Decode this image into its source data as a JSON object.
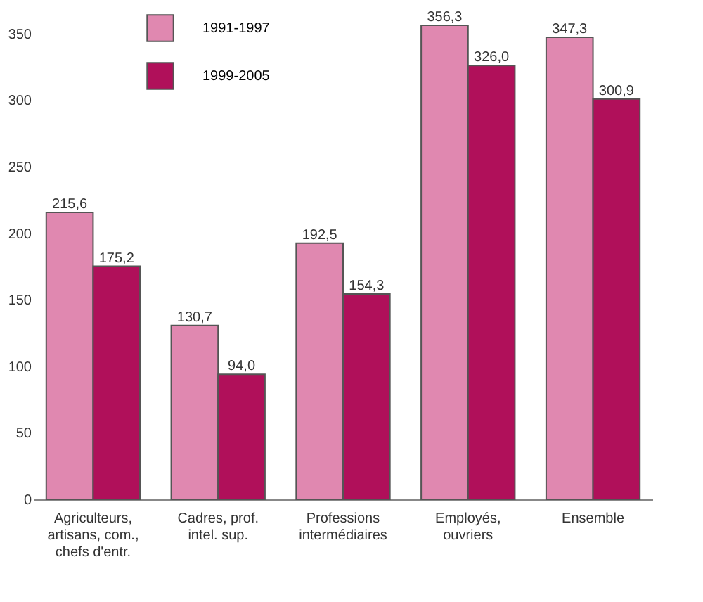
{
  "chart_data": {
    "type": "bar",
    "categories": [
      "Agriculteurs,\nartisans, com.,\nchefs d'entr.",
      "Cadres, prof.\nintel. sup.",
      "Professions\nintermédiaires",
      "Employés,\nouvriers",
      "Ensemble"
    ],
    "series": [
      {
        "name": "1991-1997",
        "color": "#e088b0",
        "values": [
          215.6,
          130.7,
          192.5,
          356.3,
          347.3
        ],
        "value_labels": [
          "215,6",
          "130,7",
          "192,5",
          "356,3",
          "347,3"
        ]
      },
      {
        "name": "1999-2005",
        "color": "#b0105a",
        "values": [
          175.2,
          94.0,
          154.3,
          326.0,
          300.9
        ],
        "value_labels": [
          "175,2",
          "94,0",
          "154,3",
          "326,0",
          "300,9"
        ]
      }
    ],
    "ylim": [
      0,
      370
    ],
    "yticks": [
      0,
      50,
      100,
      150,
      200,
      250,
      300,
      350
    ],
    "grid": false,
    "legend": "top left"
  }
}
